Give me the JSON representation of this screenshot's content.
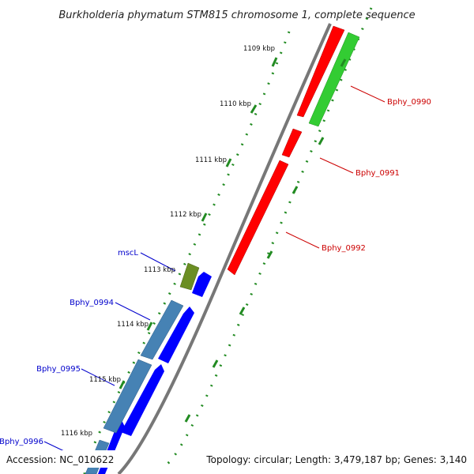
{
  "title": "Burkholderia phymatum STM815 chromosome 1, complete sequence",
  "footer": {
    "accession": "Accession: NC_010622",
    "summary": "Topology: circular; Length: 3,479,187 bp; Genes: 3,140"
  },
  "ticks": [
    "1109 kbp",
    "1110 kbp",
    "1111 kbp",
    "1112 kbp",
    "1113 kbp",
    "1114 kbp",
    "1115 kbp",
    "1116 kbp"
  ],
  "genes_reverse": [
    "Bphy_0990",
    "Bphy_0991",
    "Bphy_0992"
  ],
  "genes_forward": [
    "mscL",
    "Bphy_0994",
    "Bphy_0995",
    "Bphy_0996"
  ],
  "colors": {
    "reverse_label": "#cc0000",
    "forward_label": "#0000cc",
    "red_gene": "#ff0000",
    "green_gene": "#33cc33",
    "blue_gene": "#0000ff",
    "steel_gene": "#4682b4",
    "olive_gene": "#6b8e23",
    "backbone": "#888888",
    "tick": "#228b22"
  }
}
